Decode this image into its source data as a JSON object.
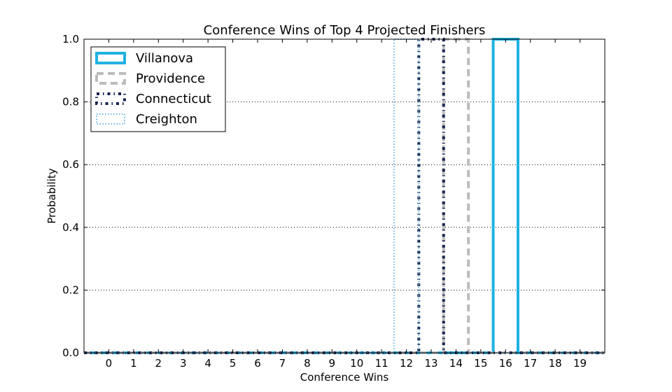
{
  "chart_data": {
    "type": "step",
    "title": "Conference Wins of Top 4 Projected Finishers",
    "xlabel": "Conference Wins",
    "ylabel": "Probability",
    "xlim": [
      -1,
      20
    ],
    "ylim": [
      0.0,
      1.0
    ],
    "xticks": [
      "0",
      "1",
      "2",
      "3",
      "4",
      "5",
      "6",
      "7",
      "8",
      "9",
      "10",
      "11",
      "12",
      "13",
      "14",
      "15",
      "16",
      "17",
      "18",
      "19"
    ],
    "yticks": [
      "0.0",
      "0.2",
      "0.4",
      "0.6",
      "0.8",
      "1.0"
    ],
    "grid": "horizontal-dotted",
    "legend_position": "top-left",
    "series": [
      {
        "name": "Villanova",
        "color": "#1fb2e3",
        "style": "solid",
        "values": [
          0,
          0,
          0,
          0,
          0,
          0,
          0,
          0,
          0,
          0,
          0,
          0,
          0,
          0,
          0,
          0,
          1,
          0,
          0,
          0
        ]
      },
      {
        "name": "Providence",
        "color": "#bbbbbb",
        "style": "dashed",
        "values": [
          0,
          0,
          0,
          0,
          0,
          0,
          0,
          0,
          0,
          0,
          0,
          0,
          0,
          0,
          1,
          0,
          0,
          0,
          0,
          0
        ]
      },
      {
        "name": "Connecticut",
        "color": "#16234f",
        "style": "dash-dot",
        "values": [
          0,
          0,
          0,
          0,
          0,
          0,
          0,
          0,
          0,
          0,
          0,
          0,
          0,
          1,
          0,
          0,
          0,
          0,
          0,
          0
        ]
      },
      {
        "name": "Creighton",
        "color": "#6fb6e0",
        "style": "dotted",
        "values": [
          0,
          0,
          0,
          0,
          0,
          0,
          0,
          0,
          0,
          0,
          0,
          0,
          1,
          0,
          0,
          0,
          0,
          0,
          0,
          0
        ]
      }
    ]
  }
}
